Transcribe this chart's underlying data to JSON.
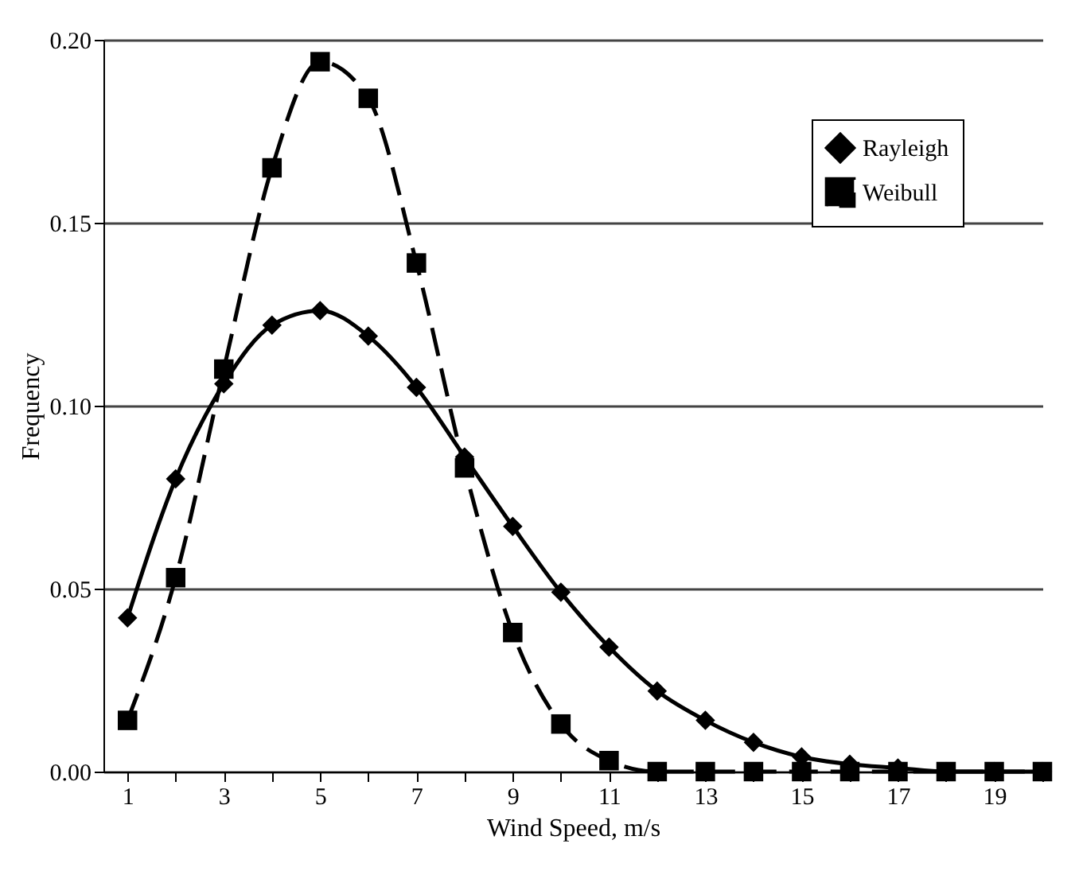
{
  "chart_data": {
    "type": "line",
    "xlabel": "Wind Speed, m/s",
    "ylabel": "Frequency",
    "x": [
      1,
      2,
      3,
      4,
      5,
      6,
      7,
      8,
      9,
      10,
      11,
      12,
      13,
      14,
      15,
      16,
      17,
      18,
      19,
      20
    ],
    "series": [
      {
        "name": "Rayleigh",
        "color": "#000000",
        "marker": "diamond",
        "line_style": "solid",
        "values": [
          0.042,
          0.08,
          0.106,
          0.122,
          0.126,
          0.119,
          0.105,
          0.086,
          0.067,
          0.049,
          0.034,
          0.022,
          0.014,
          0.008,
          0.004,
          0.002,
          0.001,
          0.0,
          0.0,
          0.0
        ]
      },
      {
        "name": "Weibull",
        "color": "#000000",
        "marker": "square",
        "line_style": "dashed",
        "values": [
          0.014,
          0.053,
          0.11,
          0.165,
          0.194,
          0.184,
          0.139,
          0.083,
          0.038,
          0.013,
          0.003,
          0.0,
          0.0,
          0.0,
          0.0,
          0.0,
          0.0,
          0.0,
          0.0,
          0.0
        ]
      }
    ],
    "xlim": [
      0.5,
      20
    ],
    "xticks": [
      1,
      {
        "value": 2,
        "label": null
      },
      3,
      {
        "value": 4,
        "label": null
      },
      5,
      {
        "value": 6,
        "label": null
      },
      7,
      {
        "value": 8,
        "label": null
      },
      9,
      {
        "value": 10,
        "label": null
      },
      11,
      {
        "value": 12,
        "label": null
      },
      13,
      {
        "value": 14,
        "label": null
      },
      15,
      {
        "value": 16,
        "label": null
      },
      17,
      {
        "value": 18,
        "label": null
      },
      19,
      {
        "value": 20,
        "label": null
      }
    ],
    "ylim": [
      0,
      0.2
    ],
    "yticks": [
      {
        "value": 0,
        "label": "0.00"
      },
      {
        "value": 0.05,
        "label": "0.05"
      },
      {
        "value": 0.1,
        "label": "0.10"
      },
      {
        "value": 0.15,
        "label": "0.15"
      },
      {
        "value": 0.2,
        "label": "0.20"
      }
    ],
    "grid": "y",
    "legend": "top right"
  }
}
